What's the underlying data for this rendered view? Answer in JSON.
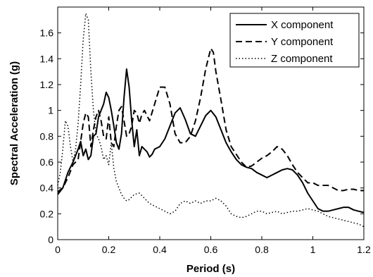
{
  "chart_data": {
    "type": "line",
    "xlabel": "Period (s)",
    "ylabel": "Spectral Acceleration (g)",
    "xlim": [
      0,
      1.2
    ],
    "ylim": [
      0,
      1.8
    ],
    "xticks": [
      "0",
      "0.2",
      "0.4",
      "0.6",
      "0.8",
      "1",
      "1.2"
    ],
    "yticks": [
      "0",
      "0.2",
      "0.4",
      "0.6",
      "0.8",
      "1",
      "1.2",
      "1.4",
      "1.6"
    ],
    "grid": false,
    "legend_position": "top-right",
    "series": [
      {
        "name": "X component",
        "style": "solid",
        "color": "#000000",
        "x": [
          0.0,
          0.02,
          0.04,
          0.06,
          0.08,
          0.09,
          0.1,
          0.11,
          0.12,
          0.13,
          0.14,
          0.15,
          0.16,
          0.17,
          0.18,
          0.19,
          0.2,
          0.21,
          0.22,
          0.23,
          0.24,
          0.25,
          0.26,
          0.27,
          0.28,
          0.29,
          0.3,
          0.31,
          0.32,
          0.33,
          0.34,
          0.35,
          0.36,
          0.37,
          0.38,
          0.4,
          0.42,
          0.44,
          0.46,
          0.48,
          0.5,
          0.52,
          0.54,
          0.56,
          0.58,
          0.6,
          0.62,
          0.64,
          0.66,
          0.68,
          0.7,
          0.72,
          0.74,
          0.76,
          0.78,
          0.8,
          0.82,
          0.84,
          0.86,
          0.88,
          0.9,
          0.92,
          0.94,
          0.96,
          0.98,
          1.0,
          1.02,
          1.04,
          1.06,
          1.08,
          1.1,
          1.12,
          1.14,
          1.16,
          1.18,
          1.2
        ],
        "y": [
          0.35,
          0.4,
          0.52,
          0.6,
          0.7,
          0.76,
          0.65,
          0.7,
          0.62,
          0.65,
          0.8,
          0.82,
          0.95,
          1.0,
          1.05,
          1.14,
          1.1,
          1.0,
          0.88,
          0.75,
          0.7,
          0.82,
          1.1,
          1.32,
          1.18,
          0.92,
          0.72,
          0.85,
          0.65,
          0.72,
          0.7,
          0.68,
          0.64,
          0.66,
          0.7,
          0.72,
          0.78,
          0.88,
          0.98,
          1.02,
          0.93,
          0.82,
          0.8,
          0.88,
          0.96,
          1.0,
          0.95,
          0.85,
          0.75,
          0.68,
          0.62,
          0.58,
          0.56,
          0.55,
          0.52,
          0.5,
          0.48,
          0.5,
          0.52,
          0.54,
          0.55,
          0.54,
          0.5,
          0.44,
          0.36,
          0.3,
          0.24,
          0.22,
          0.22,
          0.23,
          0.24,
          0.25,
          0.25,
          0.23,
          0.22,
          0.21
        ]
      },
      {
        "name": "Y component",
        "style": "dashed",
        "color": "#000000",
        "x": [
          0.0,
          0.02,
          0.04,
          0.06,
          0.08,
          0.1,
          0.11,
          0.12,
          0.13,
          0.14,
          0.15,
          0.16,
          0.17,
          0.18,
          0.19,
          0.2,
          0.21,
          0.22,
          0.23,
          0.24,
          0.25,
          0.26,
          0.27,
          0.28,
          0.29,
          0.3,
          0.31,
          0.32,
          0.33,
          0.34,
          0.36,
          0.38,
          0.4,
          0.42,
          0.44,
          0.46,
          0.48,
          0.5,
          0.52,
          0.54,
          0.56,
          0.58,
          0.6,
          0.61,
          0.62,
          0.64,
          0.66,
          0.68,
          0.7,
          0.72,
          0.74,
          0.76,
          0.78,
          0.8,
          0.82,
          0.84,
          0.86,
          0.88,
          0.9,
          0.92,
          0.94,
          0.96,
          0.98,
          1.0,
          1.02,
          1.04,
          1.06,
          1.08,
          1.1,
          1.12,
          1.14,
          1.16,
          1.18,
          1.2
        ],
        "y": [
          0.37,
          0.4,
          0.48,
          0.58,
          0.62,
          0.9,
          0.98,
          0.95,
          0.72,
          0.85,
          0.95,
          1.0,
          0.92,
          0.8,
          0.78,
          0.95,
          0.75,
          0.72,
          0.88,
          1.0,
          1.03,
          0.92,
          0.8,
          0.82,
          0.88,
          1.0,
          0.98,
          0.9,
          0.97,
          1.0,
          0.92,
          1.05,
          1.18,
          1.18,
          1.05,
          0.82,
          0.75,
          0.75,
          0.8,
          0.92,
          1.1,
          1.32,
          1.48,
          1.45,
          1.3,
          1.08,
          0.85,
          0.72,
          0.66,
          0.6,
          0.56,
          0.57,
          0.6,
          0.63,
          0.65,
          0.68,
          0.72,
          0.7,
          0.65,
          0.58,
          0.52,
          0.48,
          0.44,
          0.44,
          0.42,
          0.42,
          0.42,
          0.4,
          0.38,
          0.38,
          0.39,
          0.39,
          0.38,
          0.38
        ]
      },
      {
        "name": "Z component",
        "style": "dotted",
        "color": "#000000",
        "x": [
          0.0,
          0.01,
          0.02,
          0.03,
          0.04,
          0.05,
          0.06,
          0.07,
          0.08,
          0.09,
          0.1,
          0.11,
          0.12,
          0.13,
          0.14,
          0.15,
          0.16,
          0.17,
          0.18,
          0.19,
          0.2,
          0.21,
          0.22,
          0.23,
          0.24,
          0.25,
          0.26,
          0.27,
          0.28,
          0.3,
          0.32,
          0.34,
          0.36,
          0.38,
          0.4,
          0.42,
          0.44,
          0.46,
          0.48,
          0.5,
          0.52,
          0.54,
          0.56,
          0.58,
          0.6,
          0.62,
          0.64,
          0.66,
          0.68,
          0.7,
          0.72,
          0.74,
          0.76,
          0.78,
          0.8,
          0.82,
          0.84,
          0.86,
          0.88,
          0.9,
          0.92,
          0.94,
          0.96,
          0.98,
          1.0,
          1.02,
          1.04,
          1.06,
          1.08,
          1.1,
          1.12,
          1.14,
          1.16,
          1.18,
          1.2
        ],
        "y": [
          0.42,
          0.52,
          0.7,
          0.92,
          0.88,
          0.72,
          0.6,
          0.7,
          0.9,
          1.2,
          1.55,
          1.75,
          1.7,
          1.3,
          1.0,
          0.82,
          0.78,
          0.72,
          0.62,
          0.65,
          0.58,
          0.75,
          0.55,
          0.45,
          0.4,
          0.35,
          0.32,
          0.3,
          0.31,
          0.35,
          0.36,
          0.32,
          0.28,
          0.26,
          0.24,
          0.22,
          0.2,
          0.22,
          0.28,
          0.3,
          0.28,
          0.3,
          0.28,
          0.3,
          0.3,
          0.32,
          0.3,
          0.26,
          0.2,
          0.18,
          0.17,
          0.18,
          0.2,
          0.22,
          0.22,
          0.2,
          0.21,
          0.22,
          0.2,
          0.21,
          0.22,
          0.22,
          0.23,
          0.24,
          0.23,
          0.22,
          0.2,
          0.18,
          0.17,
          0.16,
          0.15,
          0.14,
          0.13,
          0.12,
          0.1
        ]
      }
    ]
  }
}
